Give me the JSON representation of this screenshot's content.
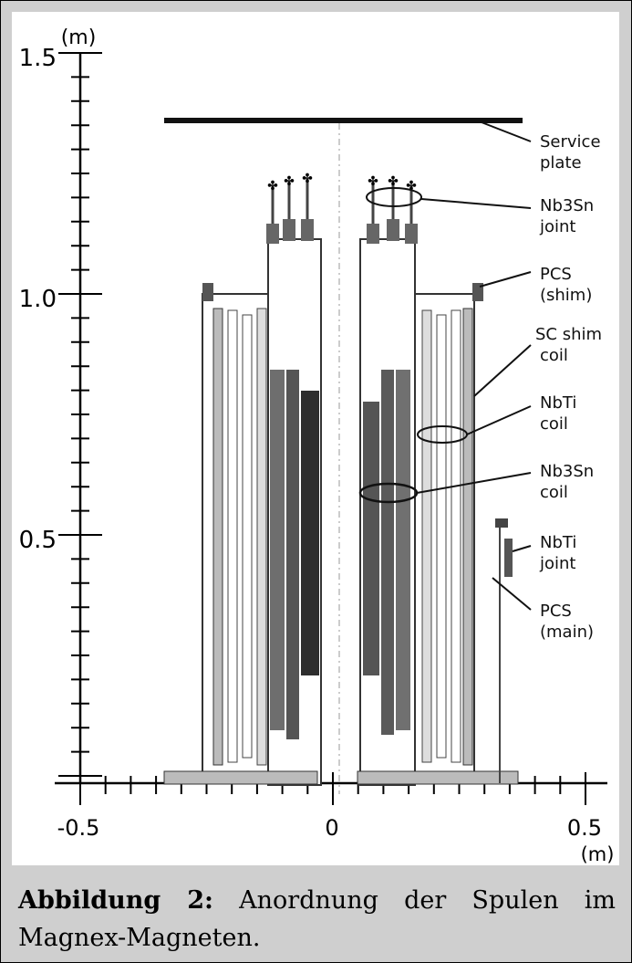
{
  "figure": {
    "y_unit": "(m)",
    "x_unit": "(m)",
    "y_ticks": [
      {
        "label": "1.5",
        "value": 1.5
      },
      {
        "label": "1.0",
        "value": 1.0
      },
      {
        "label": "0.5",
        "value": 0.5
      }
    ],
    "x_ticks": [
      {
        "label": "-0.5",
        "value": -0.5
      },
      {
        "label": "0",
        "value": 0
      },
      {
        "label": "0.5",
        "value": 0.5
      }
    ],
    "labels": [
      {
        "id": "service-plate",
        "lines": [
          "Service",
          "plate"
        ]
      },
      {
        "id": "nb3sn-joint",
        "lines": [
          "Nb3Sn",
          "joint"
        ]
      },
      {
        "id": "pcs-shim",
        "lines": [
          "PCS",
          "(shim)"
        ]
      },
      {
        "id": "sc-shim-coil",
        "lines": [
          "SC shim",
          "coil"
        ]
      },
      {
        "id": "nbti-coil",
        "lines": [
          "NbTi",
          "coil"
        ]
      },
      {
        "id": "nb3sn-coil",
        "lines": [
          "Nb3Sn",
          "coil"
        ]
      },
      {
        "id": "nbti-joint",
        "lines": [
          "NbTi",
          "joint"
        ]
      },
      {
        "id": "pcs-main",
        "lines": [
          "PCS",
          "(main)"
        ]
      }
    ]
  },
  "caption": {
    "label": "Abbildung 2:",
    "text": " Anordnung der Spulen im Magnex-Magneten."
  }
}
